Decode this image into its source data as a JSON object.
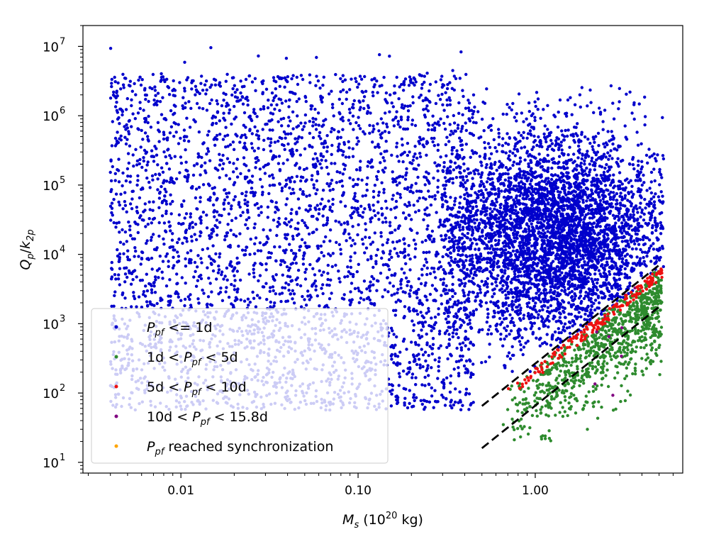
{
  "chart_data": {
    "type": "scatter",
    "x_scale": "log",
    "y_scale": "log",
    "xlim": [
      0.0028,
      6.8
    ],
    "ylim": [
      7,
      20000000
    ],
    "xlabel": {
      "base": "M",
      "sub": "s",
      "rest": " (10",
      "sup": "20",
      "unit": " kg)"
    },
    "ylabel": {
      "q": "Q",
      "q_sub": "p",
      "slash": "/",
      "k": "k",
      "k_sub": "2p"
    },
    "x_ticks": [
      {
        "value": 0.01,
        "label": "0.01"
      },
      {
        "value": 0.1,
        "label": "0.10"
      },
      {
        "value": 1,
        "label": "1.00"
      }
    ],
    "y_ticks": [
      {
        "value": 10,
        "base": "10",
        "exp": "1"
      },
      {
        "value": 100,
        "base": "10",
        "exp": "2"
      },
      {
        "value": 1000,
        "base": "10",
        "exp": "3"
      },
      {
        "value": 10000,
        "base": "10",
        "exp": "4"
      },
      {
        "value": 100000,
        "base": "10",
        "exp": "5"
      },
      {
        "value": 1000000,
        "base": "10",
        "exp": "6"
      },
      {
        "value": 10000000,
        "base": "10",
        "exp": "7"
      }
    ],
    "series": [
      {
        "key": "blue",
        "color": "#0000cc",
        "legend": {
          "p": "P",
          "sub": "pf",
          "text": " <= 1d"
        }
      },
      {
        "key": "green",
        "color": "#2e8b2e",
        "legend": {
          "pre": "1d < ",
          "p": "P",
          "sub": "pf",
          "text": " < 5d"
        }
      },
      {
        "key": "red",
        "color": "#ee1111",
        "legend": {
          "pre": "5d < ",
          "p": "P",
          "sub": "pf",
          "text": " < 10d"
        }
      },
      {
        "key": "purple",
        "color": "#800080",
        "legend": {
          "pre": "10d < ",
          "p": "P",
          "sub": "pf",
          "text": " < 15.8d"
        }
      },
      {
        "key": "orange",
        "color": "#ffa500",
        "legend": {
          "p": "P",
          "sub": "pf",
          "text": " reached synchronization"
        }
      }
    ],
    "dashed_lines": [
      {
        "x": [
          0.5,
          5.0
        ],
        "y": [
          65,
          7000
        ]
      },
      {
        "x": [
          0.5,
          5.0
        ],
        "y": [
          16,
          1750
        ]
      }
    ],
    "legend_position": "lower-left",
    "grid": false
  }
}
